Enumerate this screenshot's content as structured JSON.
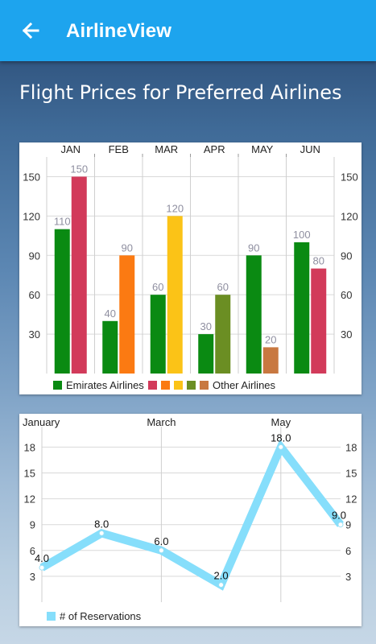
{
  "app": {
    "title": "AirlineView",
    "back_icon": "arrow-left-icon"
  },
  "page": {
    "title": "Flight Prices for Preferred Airlines"
  },
  "colors": {
    "appbar": "#1da4ee",
    "emirates": "#0a8a12",
    "line": "#86defb"
  },
  "chart_data": [
    {
      "type": "bar",
      "categories": [
        "JAN",
        "FEB",
        "MAR",
        "APR",
        "MAY",
        "JUN"
      ],
      "series": [
        {
          "name": "Emirates Airlines",
          "values": [
            110,
            40,
            60,
            30,
            90,
            100
          ],
          "colors": [
            "#0a8a12",
            "#0a8a12",
            "#0a8a12",
            "#0a8a12",
            "#0a8a12",
            "#0a8a12"
          ]
        },
        {
          "name": "Other Airlines",
          "values": [
            150,
            90,
            120,
            60,
            20,
            80
          ],
          "colors": [
            "#d23a5a",
            "#fb7a12",
            "#fbc317",
            "#6b8e23",
            "#c87840",
            "#d23a5a"
          ]
        }
      ],
      "data_labels": [
        [
          "110",
          "40",
          "60",
          "30",
          "90",
          "100"
        ],
        [
          "150",
          "90",
          "120",
          "60",
          "20",
          "80"
        ]
      ],
      "ylim": [
        0,
        165
      ],
      "yticks": [
        "30",
        "60",
        "90",
        "120",
        "150"
      ],
      "ytick_values": [
        30,
        60,
        90,
        120,
        150
      ],
      "legend": {
        "position": "bottom-left",
        "items": [
          {
            "label": "Emirates Airlines",
            "color": "#0a8a12"
          },
          {
            "label": "",
            "color": "#d23a5a"
          },
          {
            "label": "",
            "color": "#fb7a12"
          },
          {
            "label": "",
            "color": "#fbc317"
          },
          {
            "label": "",
            "color": "#6b8e23"
          },
          {
            "label": "Other Airlines",
            "color": "#c87840"
          }
        ]
      },
      "grid": true
    },
    {
      "type": "line",
      "x": [
        0,
        1,
        2,
        3,
        4,
        5
      ],
      "xtick_labels": [
        "January",
        "",
        "March",
        "",
        "May",
        ""
      ],
      "series": [
        {
          "name": "# of Reservations",
          "values": [
            4,
            8,
            6,
            2,
            18,
            9
          ]
        }
      ],
      "data_labels": [
        "4.0",
        "8.0",
        "6.0",
        "2.0",
        "18.0",
        "9.0"
      ],
      "ylim": [
        0,
        20
      ],
      "yticks": [
        "3",
        "6",
        "9",
        "12",
        "15",
        "18"
      ],
      "ytick_values": [
        3,
        6,
        9,
        12,
        15,
        18
      ],
      "legend": {
        "position": "bottom-left"
      },
      "grid": true
    }
  ]
}
